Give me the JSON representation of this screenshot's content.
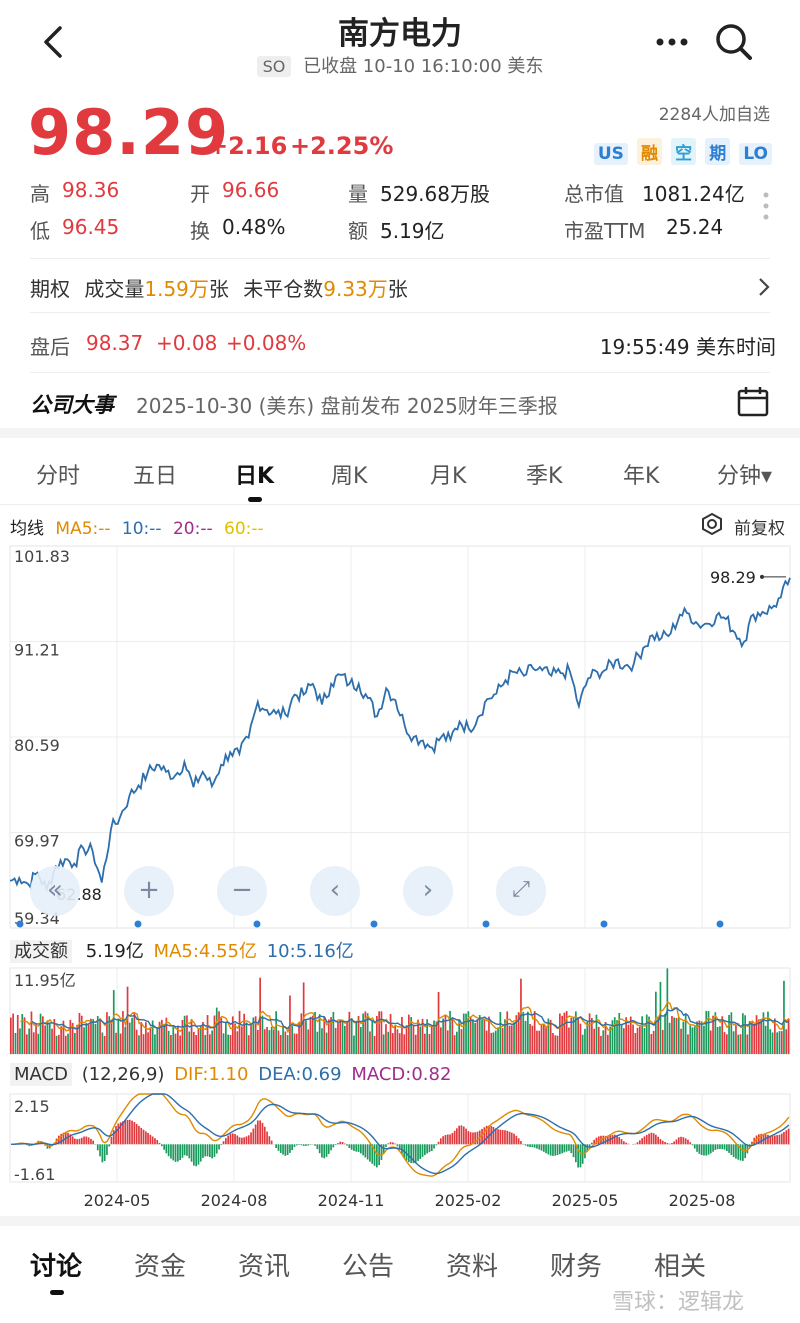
{
  "header": {
    "title": "南方电力",
    "market_tag": "SO",
    "status": "已收盘 10-10 16:10:00 美东"
  },
  "quote": {
    "price": "98.29",
    "change": "+2.16",
    "change_pct": "+2.25%",
    "watchers": "2284人加自选",
    "badges": [
      "US",
      "融",
      "空",
      "期",
      "LO"
    ],
    "high_label": "高",
    "high": "98.36",
    "open_label": "开",
    "open": "96.66",
    "volume_label": "量",
    "volume": "529.68万股",
    "mktcap_label": "总市值",
    "mktcap": "1081.24亿",
    "low_label": "低",
    "low": "96.45",
    "turnover_label": "换",
    "turnover": "0.48%",
    "amount_label": "额",
    "amount": "5.19亿",
    "pe_label": "市盈TTM",
    "pe": "25.24"
  },
  "options": {
    "label": "期权",
    "vol_label": "成交量",
    "vol": "1.59万",
    "vol_unit": "张",
    "oi_label": "未平仓数",
    "oi": "9.33万",
    "oi_unit": "张"
  },
  "afterhours": {
    "label": "盘后",
    "price": "98.37",
    "change": "+0.08",
    "change_pct": "+0.08%",
    "time": "19:55:49 美东时间"
  },
  "event": {
    "label": "公司大事",
    "text": "2025-10-30 (美东) 盘前发布 2025财年三季报"
  },
  "period_tabs": [
    "分时",
    "五日",
    "日K",
    "周K",
    "月K",
    "季K",
    "年K",
    "分钟▾"
  ],
  "active_tab": 2,
  "ma_legend": {
    "title": "均线",
    "ma5": "MA5:--",
    "ma10": "10:--",
    "ma20": "20:--",
    "ma60": "60:--",
    "adjust": "前复权"
  },
  "chart_data": [
    {
      "type": "line",
      "name": "price",
      "y_ticks": [
        "101.83",
        "91.21",
        "80.59",
        "69.97",
        "59.34"
      ],
      "ylim": [
        59.34,
        101.83
      ],
      "last_price_label": "98.29",
      "low_label": "62.88",
      "x_ticks": [
        "2024-05",
        "2024-08",
        "2024-11",
        "2025-02",
        "2025-05",
        "2025-08"
      ],
      "points": [
        [
          0,
          64.6
        ],
        [
          4,
          64.9
        ],
        [
          8,
          64.2
        ],
        [
          12,
          65.5
        ],
        [
          16,
          63.6
        ],
        [
          20,
          66.2
        ],
        [
          24,
          67.0
        ],
        [
          28,
          66.5
        ],
        [
          32,
          68.2
        ],
        [
          36,
          67.9
        ],
        [
          40,
          64.4
        ],
        [
          44,
          70.3
        ],
        [
          48,
          71.7
        ],
        [
          52,
          74.0
        ],
        [
          56,
          75.2
        ],
        [
          60,
          76.6
        ],
        [
          64,
          77.5
        ],
        [
          68,
          76.7
        ],
        [
          72,
          76.3
        ],
        [
          76,
          77.8
        ],
        [
          80,
          75.0
        ],
        [
          84,
          76.7
        ],
        [
          88,
          75.1
        ],
        [
          92,
          77.5
        ],
        [
          96,
          78.9
        ],
        [
          100,
          78.7
        ],
        [
          104,
          80.5
        ],
        [
          108,
          84.5
        ],
        [
          112,
          83.6
        ],
        [
          116,
          83.2
        ],
        [
          120,
          83.1
        ],
        [
          124,
          85.3
        ],
        [
          128,
          85.3
        ],
        [
          132,
          86.5
        ],
        [
          136,
          84.2
        ],
        [
          140,
          86.5
        ],
        [
          144,
          87.5
        ],
        [
          148,
          86.5
        ],
        [
          152,
          86.5
        ],
        [
          156,
          84.9
        ],
        [
          160,
          82.9
        ],
        [
          164,
          86.0
        ],
        [
          168,
          84.7
        ],
        [
          172,
          81.9
        ],
        [
          176,
          80.6
        ],
        [
          180,
          80.2
        ],
        [
          184,
          79.4
        ],
        [
          188,
          80.6
        ],
        [
          192,
          80.3
        ],
        [
          196,
          82.3
        ],
        [
          200,
          81.5
        ],
        [
          204,
          82.8
        ],
        [
          208,
          84.8
        ],
        [
          212,
          85.4
        ],
        [
          216,
          86.9
        ],
        [
          220,
          87.8
        ],
        [
          224,
          87.4
        ],
        [
          228,
          88.2
        ],
        [
          232,
          88.0
        ],
        [
          236,
          87.4
        ],
        [
          240,
          87.7
        ],
        [
          244,
          87.9
        ],
        [
          248,
          84.0
        ],
        [
          252,
          87.1
        ],
        [
          256,
          87.8
        ],
        [
          260,
          88.1
        ],
        [
          264,
          89.1
        ],
        [
          268,
          88.5
        ],
        [
          272,
          88.8
        ],
        [
          276,
          90.5
        ],
        [
          280,
          91.9
        ],
        [
          284,
          91.6
        ],
        [
          288,
          92.1
        ],
        [
          292,
          94.2
        ],
        [
          296,
          94.3
        ],
        [
          300,
          93.1
        ],
        [
          304,
          93.2
        ],
        [
          308,
          94.1
        ],
        [
          312,
          93.7
        ],
        [
          316,
          92.2
        ],
        [
          320,
          91.2
        ],
        [
          324,
          94.2
        ],
        [
          328,
          94.5
        ],
        [
          332,
          94.9
        ],
        [
          336,
          96.1
        ],
        [
          340,
          98.29
        ]
      ],
      "n": 341
    },
    {
      "type": "bar",
      "name": "volume",
      "header_label": "成交额",
      "value": "5.19亿",
      "ma5": "MA5:4.55亿",
      "ma10": "10:5.16亿",
      "ymax_label": "11.95亿",
      "ylim": [
        0,
        11.95
      ]
    },
    {
      "type": "bar",
      "name": "macd",
      "header_label": "MACD",
      "params": "(12,26,9)",
      "dif": "DIF:1.10",
      "dea": "DEA:0.69",
      "macd": "MACD:0.82",
      "ymax_label": "2.15",
      "ymin_label": "-1.61",
      "ylim": [
        -1.61,
        2.15
      ]
    }
  ],
  "bottom_tabs": [
    "讨论",
    "资金",
    "资讯",
    "公告",
    "资料",
    "财务",
    "相关"
  ],
  "watermark": "雪球：逻辑龙",
  "colors": {
    "up": "#e0393e",
    "down": "#1a9a5c",
    "line": "#2d6eab",
    "ma5": "#e08a00",
    "ma10": "#2d6eab"
  }
}
